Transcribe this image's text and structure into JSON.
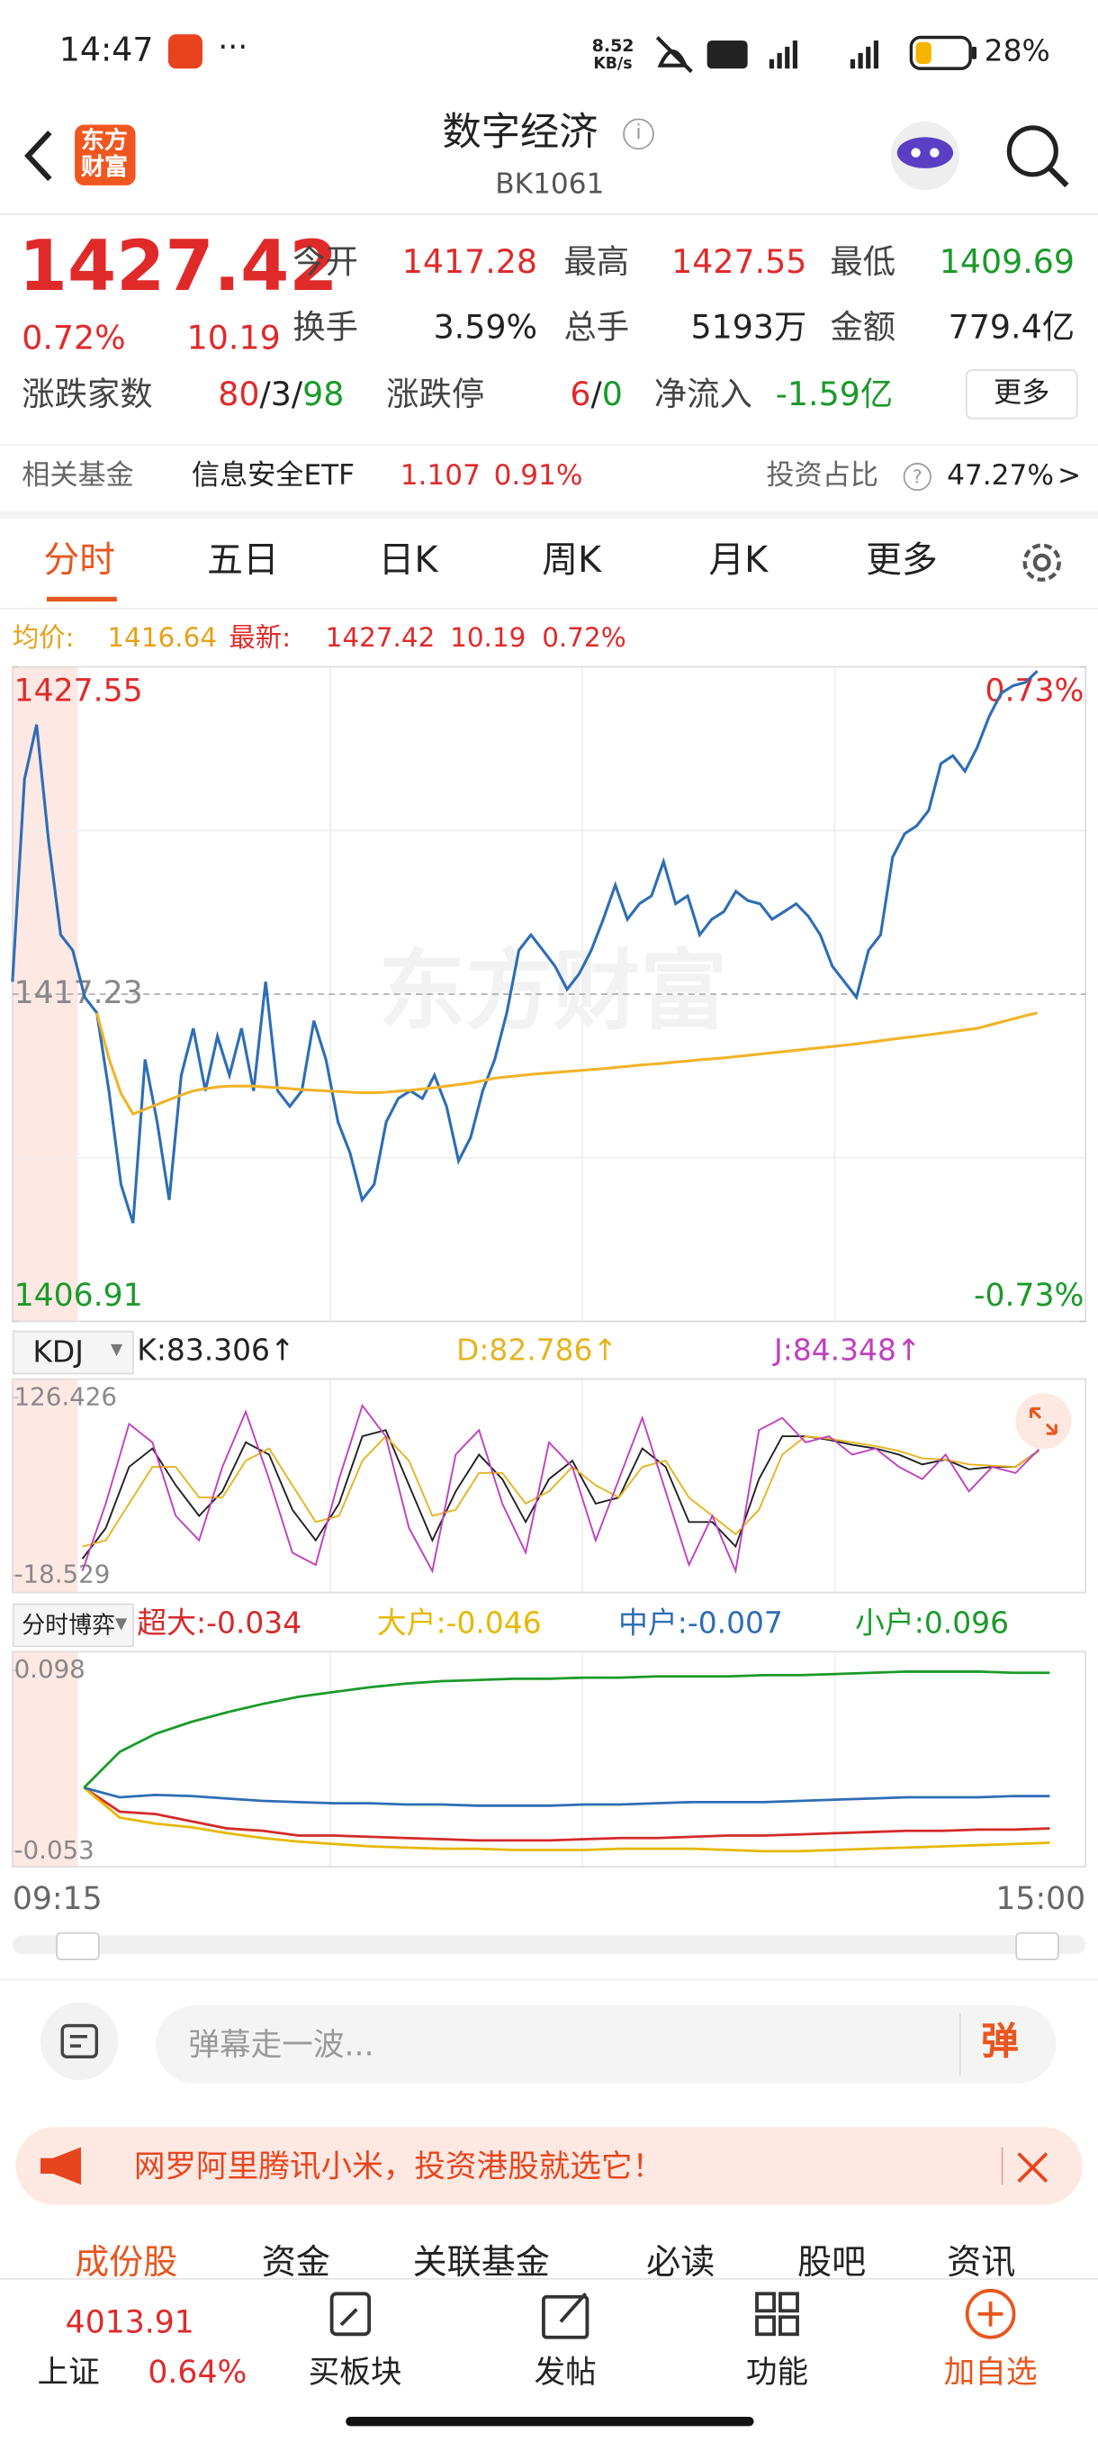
{
  "status_bar": {
    "time": "14:47",
    "net_speed": "8.52",
    "net_unit": "KB/s",
    "battery": "28%"
  },
  "header": {
    "title": "数字经济",
    "code": "BK1061",
    "logo": [
      "东方",
      "财富"
    ]
  },
  "quote": {
    "price": "1427.42",
    "change_pct": "0.72%",
    "change": "10.19",
    "fields": [
      {
        "label": "今开",
        "value": "1417.28"
      },
      {
        "label": "最高",
        "value": "1427.55"
      },
      {
        "label": "最低",
        "value": "1409.69"
      },
      {
        "label": "换手",
        "value": "3.59%"
      },
      {
        "label": "总手",
        "value": "5193万"
      },
      {
        "label": "金额",
        "value": "779.4亿"
      }
    ],
    "breadth_label": "涨跌家数",
    "breadth": [
      "80",
      "/",
      "3",
      "/",
      "98"
    ],
    "limit_label": "涨跌停",
    "limit": [
      "6",
      "/",
      "0"
    ],
    "inflow_label": "净流入",
    "inflow": "-1.59亿",
    "more": "更多"
  },
  "fund": {
    "label": "相关基金",
    "name": "信息安全ETF",
    "price": "1.107",
    "change": "0.91%",
    "ratio_label": "投资占比",
    "ratio": "47.27%",
    "arrow": ">"
  },
  "tabs": [
    "分时",
    "五日",
    "日K",
    "周K",
    "月K",
    "更多"
  ],
  "summary": {
    "avg_label": "均价:",
    "avg": "1416.64",
    "last_label": "最新:",
    "last": "1427.42",
    "change": "10.19",
    "change_pct": "0.72%"
  },
  "price_chart": {
    "type": "line",
    "ylim": [
      1406.91,
      1427.55
    ],
    "yticks": [
      1406.91,
      1417.23,
      1427.55
    ],
    "y2lim": [
      -0.73,
      0.73
    ],
    "y2ticks": [
      {
        "value": -0.73,
        "label": "-0.73%"
      },
      {
        "value": 0.73,
        "label": "0.73%"
      }
    ],
    "watermark": "东方财富",
    "series": [
      {
        "color": "#2f6db5",
        "values": [
          1417.62,
          1424.01,
          1425.73,
          1422.05,
          1419.1,
          1418.61,
          1417.13,
          1416.64,
          1414.18,
          1411.23,
          1410.01,
          1415.17,
          1413.2,
          1410.74,
          1414.67,
          1416.15,
          1414.18,
          1415.9,
          1414.67,
          1416.15,
          1414.18,
          1417.62,
          1414.18,
          1413.69,
          1414.18,
          1416.39,
          1415.17,
          1413.2,
          1412.22,
          1410.74,
          1411.23,
          1413.2,
          1413.94,
          1414.18,
          1413.94,
          1414.67,
          1413.69,
          1411.97,
          1412.71,
          1414.18,
          1415.17,
          1416.64,
          1418.61,
          1419.1,
          1418.61,
          1418.11,
          1417.38,
          1417.87,
          1418.61,
          1419.59,
          1420.67,
          1419.59,
          1420.08,
          1420.33,
          1421.41,
          1420.08,
          1420.33,
          1419.1,
          1419.59,
          1419.83,
          1420.47,
          1420.18,
          1420.08,
          1419.59,
          1419.83,
          1420.08,
          1419.69,
          1419.1,
          1418.11,
          1417.62,
          1417.13,
          1418.61,
          1419.1,
          1421.55,
          1422.29,
          1422.54,
          1423.03,
          1424.5,
          1424.75,
          1424.26,
          1425.0,
          1425.98,
          1426.72,
          1426.96,
          1427.06,
          1427.42,
          null,
          null,
          null,
          null
        ]
      },
      {
        "color": "#f0b429",
        "values": [
          null,
          null,
          null,
          null,
          null,
          null,
          null,
          1416.64,
          1415.2,
          1414.1,
          1413.45,
          1413.6,
          1413.75,
          1413.9,
          1414.05,
          1414.18,
          1414.25,
          1414.3,
          1414.33,
          1414.33,
          1414.33,
          1414.3,
          1414.28,
          1414.25,
          1414.22,
          1414.2,
          1414.18,
          1414.16,
          1414.14,
          1414.12,
          1414.12,
          1414.14,
          1414.17,
          1414.2,
          1414.24,
          1414.28,
          1414.33,
          1414.38,
          1414.43,
          1414.5,
          1414.58,
          1414.62,
          1414.66,
          1414.7,
          1414.73,
          1414.76,
          1414.79,
          1414.82,
          1414.85,
          1414.88,
          1414.92,
          1414.95,
          1414.99,
          1415.02,
          1415.05,
          1415.09,
          1415.12,
          1415.16,
          1415.19,
          1415.22,
          1415.26,
          1415.3,
          1415.34,
          1415.38,
          1415.42,
          1415.46,
          1415.5,
          1415.54,
          1415.58,
          1415.62,
          1415.66,
          1415.71,
          1415.76,
          1415.81,
          1415.86,
          1415.9,
          1415.95,
          1416.0,
          1416.05,
          1416.1,
          1416.15,
          1416.25,
          1416.35,
          1416.45,
          1416.55,
          1416.64,
          null,
          null,
          null,
          null
        ]
      }
    ]
  },
  "kdj_chart": {
    "type": "line",
    "indicator": "KDJ",
    "ylim": [
      -18.529,
      126.426
    ],
    "yticks": [
      -18.529,
      126.426
    ],
    "series": [
      {
        "label": "K:83.306↑",
        "color": "#222222",
        "values": [
          null,
          null,
          null,
          -5,
          20,
          70,
          85,
          55,
          30,
          50,
          90,
          80,
          35,
          10,
          40,
          95,
          100,
          55,
          10,
          50,
          80,
          60,
          25,
          60,
          75,
          40,
          45,
          85,
          70,
          25,
          25,
          5,
          60,
          95,
          95,
          92,
          88,
          85,
          80,
          72,
          76,
          68,
          70,
          70,
          83.306,
          null,
          null
        ]
      },
      {
        "label": "D:82.786↑",
        "color": "#e6b422",
        "values": [
          null,
          null,
          null,
          5,
          10,
          40,
          70,
          70,
          45,
          45,
          75,
          85,
          55,
          25,
          30,
          75,
          95,
          75,
          30,
          35,
          65,
          65,
          40,
          50,
          70,
          55,
          45,
          70,
          75,
          45,
          30,
          15,
          35,
          80,
          95,
          93,
          90,
          87,
          83,
          77,
          76,
          72,
          71,
          70,
          82.786,
          null,
          null
        ]
      },
      {
        "label": "J:84.348↑",
        "color": "#c040c0",
        "values": [
          null,
          null,
          null,
          -15,
          40,
          105,
          90,
          30,
          10,
          70,
          115,
          60,
          0,
          -10,
          60,
          120,
          95,
          20,
          -15,
          80,
          100,
          40,
          0,
          90,
          70,
          10,
          60,
          110,
          50,
          -10,
          30,
          -15,
          100,
          110,
          90,
          95,
          80,
          85,
          70,
          60,
          80,
          50,
          70,
          65,
          84.348,
          null,
          null
        ]
      }
    ]
  },
  "flow_chart": {
    "type": "line",
    "indicator": "分时博弈",
    "ylim": [
      -0.053,
      0.098
    ],
    "yticks": [
      -0.053,
      0.098
    ],
    "series": [
      {
        "label": "超大:-0.034",
        "color": "#d42a2a",
        "values": [
          null,
          null,
          0,
          -0.02,
          -0.022,
          -0.028,
          -0.034,
          -0.036,
          -0.04,
          -0.04,
          -0.041,
          -0.042,
          -0.043,
          -0.044,
          -0.044,
          -0.044,
          -0.043,
          -0.042,
          -0.042,
          -0.041,
          -0.04,
          -0.04,
          -0.039,
          -0.038,
          -0.037,
          -0.036,
          -0.036,
          -0.035,
          -0.035,
          -0.034,
          null
        ]
      },
      {
        "label": "大户:-0.046",
        "color": "#e6b800",
        "values": [
          null,
          null,
          0,
          -0.025,
          -0.03,
          -0.033,
          -0.038,
          -0.042,
          -0.045,
          -0.047,
          -0.049,
          -0.05,
          -0.051,
          -0.051,
          -0.052,
          -0.052,
          -0.052,
          -0.051,
          -0.051,
          -0.051,
          -0.052,
          -0.053,
          -0.053,
          -0.052,
          -0.051,
          -0.05,
          -0.049,
          -0.048,
          -0.047,
          -0.046,
          null
        ]
      },
      {
        "label": "中户:-0.007",
        "color": "#2f6db5",
        "values": [
          null,
          null,
          0,
          -0.008,
          -0.006,
          -0.007,
          -0.009,
          -0.011,
          -0.012,
          -0.013,
          -0.013,
          -0.014,
          -0.014,
          -0.015,
          -0.015,
          -0.015,
          -0.014,
          -0.014,
          -0.013,
          -0.012,
          -0.012,
          -0.012,
          -0.011,
          -0.01,
          -0.009,
          -0.008,
          -0.008,
          -0.008,
          -0.007,
          -0.007,
          null
        ]
      },
      {
        "label": "小户:0.096",
        "color": "#1a9a2a",
        "values": [
          null,
          null,
          0,
          0.03,
          0.045,
          0.055,
          0.063,
          0.07,
          0.076,
          0.08,
          0.084,
          0.087,
          0.089,
          0.09,
          0.091,
          0.091,
          0.092,
          0.092,
          0.093,
          0.093,
          0.093,
          0.094,
          0.094,
          0.095,
          0.096,
          0.097,
          0.097,
          0.097,
          0.096,
          0.096,
          null
        ]
      }
    ]
  },
  "time_axis": [
    "09:15",
    "15:00"
  ],
  "danmaku": {
    "placeholder": "弹幕走一波...",
    "button": "弹"
  },
  "banner": "网罗阿里腾讯小米，投资港股就选它！",
  "sections": [
    "成份股",
    "资金",
    "关联基金",
    "必读",
    "股吧",
    "资讯"
  ],
  "bottom_bar": {
    "index_value": "4013.91",
    "index_name": "上证",
    "index_change": "0.64%",
    "actions": [
      "买板块",
      "发帖",
      "功能",
      "加自选"
    ]
  }
}
